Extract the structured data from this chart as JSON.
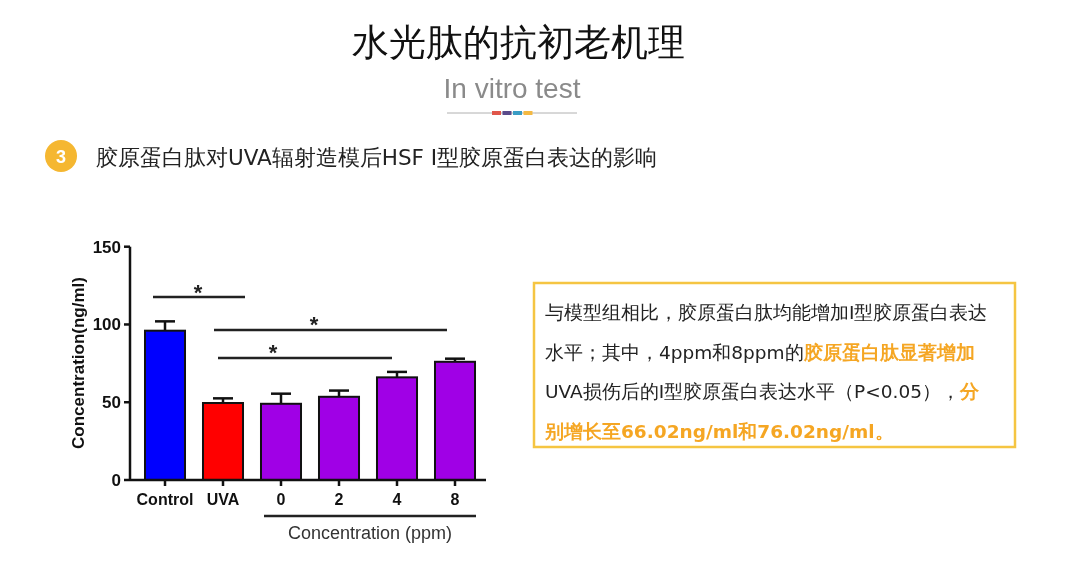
{
  "chart_data": {
    "type": "bar",
    "title": "水光肽的抗初老机理",
    "subtitle": "In vitro test",
    "ylabel": "Concentration(ng/ml)",
    "xlabel": "Concentration (ppm)",
    "categories": [
      "Control",
      "UVA",
      "0",
      "2",
      "4",
      "8"
    ],
    "values": [
      96,
      49.5,
      49,
      53.5,
      66,
      76
    ],
    "errors": [
      6,
      3,
      6.5,
      4,
      3.5,
      2
    ],
    "colors": [
      "#0000ff",
      "#ff0000",
      "#a000e6",
      "#a000e6",
      "#a000e6",
      "#a000e6"
    ],
    "ylim": [
      0,
      150
    ],
    "yticks": [
      0,
      50,
      100,
      150
    ],
    "annotations": [
      "3",
      "胶原蛋白肽对UVA辐射造模后HSF Ⅰ型胶原蛋白表达的影响",
      "*",
      "*",
      "*",
      "与模型组相比，胶原蛋白肽均能增加Ⅰ型胶原蛋白表达",
      "水平；其中，4ppm和8ppm的",
      "胶原蛋白肽显著增加",
      "UVA损伤后的Ⅰ型胶原蛋白表达水平（P<0.05），",
      "分",
      "别增长至66.02ng/ml和76.02ng/ml。"
    ]
  }
}
